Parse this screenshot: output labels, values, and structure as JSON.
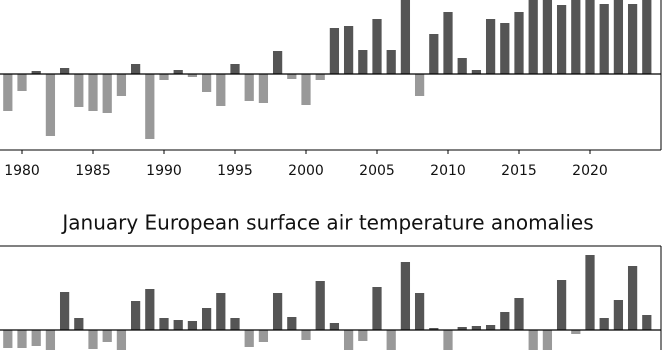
{
  "chart_data": [
    {
      "type": "bar",
      "x": [
        1979,
        1980,
        1981,
        1982,
        1983,
        1984,
        1985,
        1986,
        1987,
        1988,
        1989,
        1990,
        1991,
        1992,
        1993,
        1994,
        1995,
        1996,
        1997,
        1998,
        1999,
        2000,
        2001,
        2002,
        2003,
        2004,
        2005,
        2006,
        2007,
        2008,
        2009,
        2010,
        2011,
        2012,
        2013,
        2014,
        2015,
        2016,
        2017,
        2018,
        2019,
        2020,
        2021,
        2022,
        2023,
        2024
      ],
      "values": [
        -3.7,
        -1.7,
        0.3,
        -6.2,
        0.6,
        -3.3,
        -3.7,
        -3.9,
        -2.2,
        1.0,
        -6.5,
        -0.6,
        0.4,
        -0.3,
        -1.8,
        -3.2,
        1.0,
        -2.7,
        -2.9,
        2.3,
        -0.5,
        -3.1,
        -0.6,
        4.6,
        4.8,
        2.4,
        5.5,
        2.4,
        8.0,
        -2.2,
        4.0,
        6.2,
        1.6,
        0.4,
        5.5,
        5.1,
        6.2,
        8.0,
        8.0,
        6.9,
        8.0,
        8.0,
        7.0,
        8.0,
        7.0,
        8.0
      ],
      "positive_color": "#555555",
      "negative_color": "#999999",
      "xlim": [
        1978.45,
        2025
      ],
      "ylim": [
        -7.6,
        7.4
      ],
      "xticks": [
        1980,
        1985,
        1990,
        1995,
        2000,
        2005,
        2010,
        2015,
        2020
      ]
    },
    {
      "type": "bar",
      "title": "January European surface air temperature anomalies",
      "x": [
        1979,
        1980,
        1981,
        1982,
        1983,
        1984,
        1985,
        1986,
        1987,
        1988,
        1989,
        1990,
        1991,
        1992,
        1993,
        1994,
        1995,
        1996,
        1997,
        1998,
        1999,
        2000,
        2001,
        2002,
        2003,
        2004,
        2005,
        2006,
        2007,
        2008,
        2009,
        2010,
        2011,
        2012,
        2013,
        2014,
        2015,
        2016,
        2017,
        2018,
        2019,
        2020,
        2021,
        2022,
        2023,
        2024
      ],
      "values": [
        -1.8,
        -1.8,
        -1.6,
        -2.2,
        3.8,
        1.2,
        -1.9,
        -1.2,
        -2.2,
        2.9,
        4.1,
        1.2,
        1.0,
        0.9,
        2.2,
        3.7,
        1.2,
        -1.7,
        -1.2,
        3.7,
        1.3,
        -1.0,
        4.9,
        0.7,
        -2.2,
        -1.1,
        4.3,
        -2.2,
        6.8,
        3.7,
        0.2,
        -2.2,
        0.3,
        0.4,
        0.5,
        1.8,
        3.2,
        -2.2,
        -2.2,
        5.0,
        -0.4,
        7.5,
        1.2,
        3.0,
        6.4,
        1.5
      ],
      "positive_color": "#555555",
      "negative_color": "#999999",
      "xlim": [
        1978.45,
        2025
      ],
      "ylim": [
        -2,
        8.4
      ]
    }
  ]
}
